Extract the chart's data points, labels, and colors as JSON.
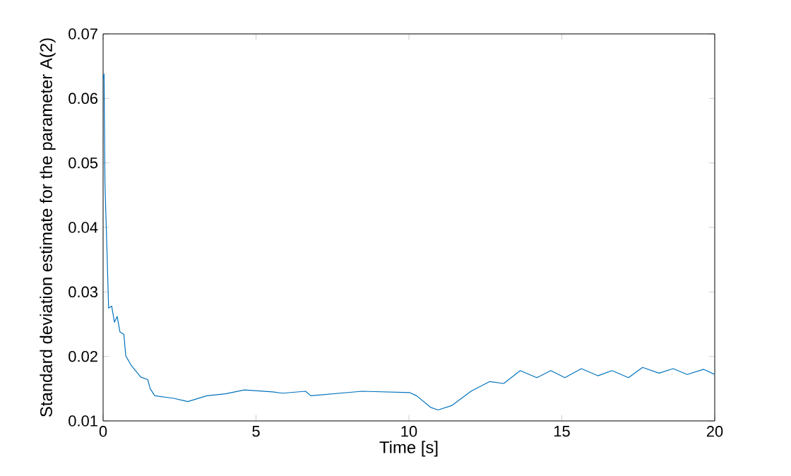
{
  "chart_data": {
    "type": "line",
    "xlabel": "Time [s]",
    "ylabel": "Standard deviation estimate for the parameter A(2)",
    "xlim": [
      0,
      20
    ],
    "ylim": [
      0.01,
      0.07
    ],
    "xticks": [
      0,
      5,
      10,
      15,
      20
    ],
    "yticks": [
      0.01,
      0.02,
      0.03,
      0.04,
      0.05,
      0.06,
      0.07
    ],
    "grid": false,
    "marker": "none",
    "line_style": "solid",
    "series": [
      {
        "color": "#0072bd",
        "x": [
          0,
          0.03,
          0.06,
          0.12,
          0.18,
          0.28,
          0.37,
          0.46,
          0.55,
          0.68,
          0.74,
          0.92,
          1.23,
          1.46,
          1.54,
          1.69,
          2.31,
          2.77,
          3.39,
          4.0,
          4.62,
          5.54,
          5.87,
          6.62,
          6.79,
          8.48,
          10.02,
          10.25,
          10.71,
          10.95,
          11.41,
          12.03,
          12.64,
          13.1,
          13.64,
          14.18,
          14.64,
          15.1,
          15.64,
          16.18,
          16.64,
          17.18,
          17.64,
          18.18,
          18.64,
          19.1,
          19.64,
          20
        ],
        "values": [
          0.063,
          0.0638,
          0.0469,
          0.0374,
          0.0275,
          0.0278,
          0.0253,
          0.0262,
          0.0238,
          0.0234,
          0.0201,
          0.0186,
          0.0168,
          0.0164,
          0.015,
          0.0139,
          0.0135,
          0.013,
          0.0139,
          0.0142,
          0.0148,
          0.0145,
          0.0143,
          0.0146,
          0.0139,
          0.0146,
          0.0144,
          0.0139,
          0.0121,
          0.0117,
          0.0124,
          0.0146,
          0.0161,
          0.0158,
          0.0178,
          0.0167,
          0.0178,
          0.0167,
          0.0181,
          0.017,
          0.0178,
          0.0167,
          0.0183,
          0.0174,
          0.0181,
          0.0172,
          0.018,
          0.0172
        ]
      }
    ]
  }
}
